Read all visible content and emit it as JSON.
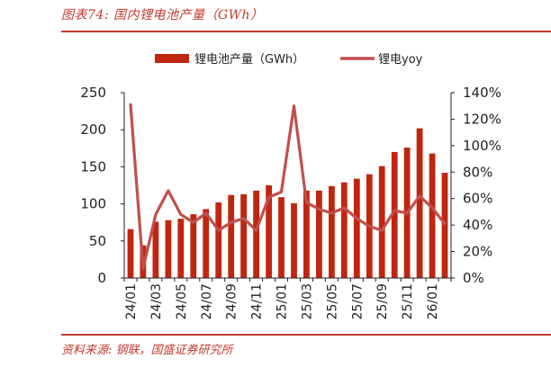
{
  "figure_title": "图表74:  国内锂电池产量（GWh）",
  "source": "资料来源:  钢联，国盛证券研究所",
  "chart_data": {
    "type": "bar",
    "categories": [
      "24/01",
      "24/02",
      "24/03",
      "24/04",
      "24/05",
      "24/06",
      "24/07",
      "24/08",
      "24/09",
      "24/10",
      "24/11",
      "24/12",
      "25/01",
      "25/02",
      "25/03",
      "25/04",
      "25/05",
      "25/06",
      "25/07",
      "25/08",
      "25/09",
      "25/10",
      "25/11",
      "25/12",
      "26/01",
      "26/02"
    ],
    "x_tick_labels": [
      "24/01",
      "24/03",
      "24/05",
      "24/07",
      "24/09",
      "24/11",
      "25/01",
      "25/03",
      "25/05",
      "25/07",
      "25/09",
      "25/11",
      "26/01"
    ],
    "series": [
      {
        "name": "锂电池产量（GWh）",
        "kind": "bar",
        "axis": "left",
        "color": "#c0260f",
        "values": [
          66,
          44,
          76,
          78,
          80,
          86,
          93,
          102,
          112,
          113,
          118,
          125,
          109,
          101,
          118,
          118,
          124,
          129,
          134,
          140,
          151,
          170,
          176,
          202,
          168,
          142
        ]
      },
      {
        "name": "锂电yoy",
        "kind": "line",
        "axis": "right",
        "color": "#c0504d",
        "values": [
          1.31,
          0.07,
          0.48,
          0.66,
          0.48,
          0.42,
          0.49,
          0.36,
          0.42,
          0.45,
          0.36,
          0.61,
          0.65,
          1.3,
          0.57,
          0.52,
          0.49,
          0.53,
          0.45,
          0.39,
          0.36,
          0.51,
          0.49,
          0.62,
          0.53,
          0.41
        ]
      }
    ],
    "y_left": {
      "min": 0,
      "max": 250,
      "ticks": [
        0,
        50,
        100,
        150,
        200,
        250
      ]
    },
    "y_right": {
      "min": 0,
      "max": 1.4,
      "ticks": [
        "0%",
        "20%",
        "40%",
        "60%",
        "80%",
        "100%",
        "120%",
        "140%"
      ]
    },
    "legend_position": "top",
    "grid": false
  }
}
